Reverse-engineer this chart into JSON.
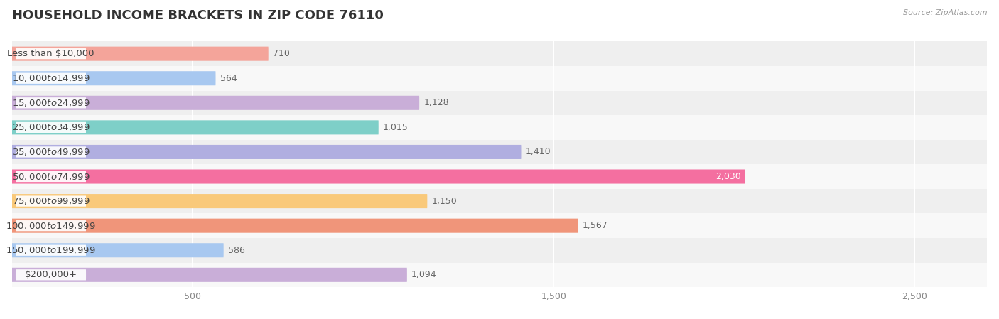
{
  "title": "HOUSEHOLD INCOME BRACKETS IN ZIP CODE 76110",
  "source": "Source: ZipAtlas.com",
  "categories": [
    "Less than $10,000",
    "$10,000 to $14,999",
    "$15,000 to $24,999",
    "$25,000 to $34,999",
    "$35,000 to $49,999",
    "$50,000 to $74,999",
    "$75,000 to $99,999",
    "$100,000 to $149,999",
    "$150,000 to $199,999",
    "$200,000+"
  ],
  "values": [
    710,
    564,
    1128,
    1015,
    1410,
    2030,
    1150,
    1567,
    586,
    1094
  ],
  "bar_colors": [
    "#f4a49a",
    "#a8c8f0",
    "#c9aed8",
    "#7ecfc8",
    "#b0aee0",
    "#f46fa0",
    "#f9c97a",
    "#f0957a",
    "#a8c8f0",
    "#c9aed8"
  ],
  "value_inside": [
    false,
    false,
    false,
    false,
    false,
    true,
    false,
    false,
    false,
    false
  ],
  "xlim": [
    0,
    2700
  ],
  "xticks": [
    500,
    1500,
    2500
  ],
  "title_fontsize": 13,
  "label_fontsize": 9.5,
  "value_fontsize": 9
}
